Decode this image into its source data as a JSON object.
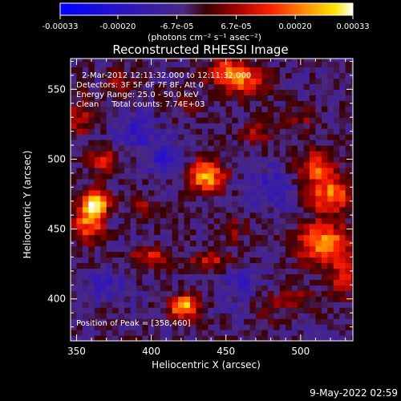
{
  "chart_data": {
    "type": "heatmap",
    "title": "Reconstructed RHESSI Image",
    "xlabel": "Heliocentric X (arcsec)",
    "ylabel": "Heliocentric Y (arcsec)",
    "xlim": [
      346,
      535
    ],
    "ylim": [
      370,
      572
    ],
    "xticks": [
      350,
      400,
      450,
      500
    ],
    "yticks": [
      400,
      450,
      500,
      550
    ],
    "colorbar": {
      "label": "(photons cm⁻² s⁻¹ asec⁻²)",
      "range": [
        -0.00033,
        0.00033
      ],
      "ticks": [
        -0.00033,
        -0.0002,
        -6.7e-05,
        6.7e-05,
        0.0002,
        0.00033
      ],
      "tick_labels": [
        "-0.00033",
        "-0.00020",
        "-6.7e-05",
        "6.7e-05",
        "0.00020",
        "0.00033"
      ]
    },
    "annotations": {
      "time": "2-Mar-2012 12:11:32.000 to 12:11:32.000",
      "detectors": "Detectors: 3F 5F 6F 7F 8F, Att 0",
      "energy": "Energy Range: 25.0 - 50.0 keV",
      "method": "Clean     Total counts: 7.74E+03",
      "peak": "Position of Peak = [358,460]"
    },
    "blobs": [
      {
        "x": 363,
        "y": 470,
        "sx": 6,
        "sy": 7,
        "v": 0.00033
      },
      {
        "x": 358,
        "y": 455,
        "sx": 7,
        "sy": 9,
        "v": 0.00024
      },
      {
        "x": 368,
        "y": 500,
        "sx": 8,
        "sy": 6,
        "v": 0.00016
      },
      {
        "x": 352,
        "y": 530,
        "sx": 8,
        "sy": 10,
        "v": 0.00012
      },
      {
        "x": 437,
        "y": 488,
        "sx": 8,
        "sy": 8,
        "v": 0.0003
      },
      {
        "x": 422,
        "y": 395,
        "sx": 7,
        "sy": 6,
        "v": 0.00032
      },
      {
        "x": 450,
        "y": 562,
        "sx": 10,
        "sy": 8,
        "v": 0.0002
      },
      {
        "x": 465,
        "y": 555,
        "sx": 10,
        "sy": 8,
        "v": 0.00016
      },
      {
        "x": 515,
        "y": 440,
        "sx": 12,
        "sy": 10,
        "v": 0.00028
      },
      {
        "x": 520,
        "y": 475,
        "sx": 10,
        "sy": 10,
        "v": 0.00024
      },
      {
        "x": 510,
        "y": 495,
        "sx": 8,
        "sy": 8,
        "v": 0.0002
      },
      {
        "x": 528,
        "y": 415,
        "sx": 8,
        "sy": 10,
        "v": 0.00014
      },
      {
        "x": 400,
        "y": 430,
        "sx": 12,
        "sy": 5,
        "v": 0.00015
      },
      {
        "x": 440,
        "y": 428,
        "sx": 10,
        "sy": 5,
        "v": 0.00014
      },
      {
        "x": 470,
        "y": 520,
        "sx": 8,
        "sy": 6,
        "v": 0.00012
      },
      {
        "x": 500,
        "y": 530,
        "sx": 8,
        "sy": 6,
        "v": 0.0001
      },
      {
        "x": 380,
        "y": 555,
        "sx": 8,
        "sy": 6,
        "v": 0.0001
      },
      {
        "x": 455,
        "y": 450,
        "sx": 6,
        "sy": 6,
        "v": 0.0001
      },
      {
        "x": 480,
        "y": 395,
        "sx": 8,
        "sy": 8,
        "v": 8e-05
      },
      {
        "x": 395,
        "y": 468,
        "sx": 6,
        "sy": 6,
        "v": 9e-05
      },
      {
        "x": 420,
        "y": 540,
        "sx": 10,
        "sy": 6,
        "v": 7e-05
      },
      {
        "x": 500,
        "y": 400,
        "sx": 8,
        "sy": 6,
        "v": 0.0001
      },
      {
        "x": 410,
        "y": 500,
        "sx": 8,
        "sy": 8,
        "v": -0.00012
      },
      {
        "x": 480,
        "y": 480,
        "sx": 10,
        "sy": 10,
        "v": -0.0001
      },
      {
        "x": 390,
        "y": 520,
        "sx": 10,
        "sy": 10,
        "v": -0.0001
      },
      {
        "x": 460,
        "y": 410,
        "sx": 10,
        "sy": 8,
        "v": -9e-05
      },
      {
        "x": 370,
        "y": 410,
        "sx": 10,
        "sy": 8,
        "v": -8e-05
      }
    ]
  },
  "footer": {
    "timestamp": "9-May-2022 02:59"
  }
}
